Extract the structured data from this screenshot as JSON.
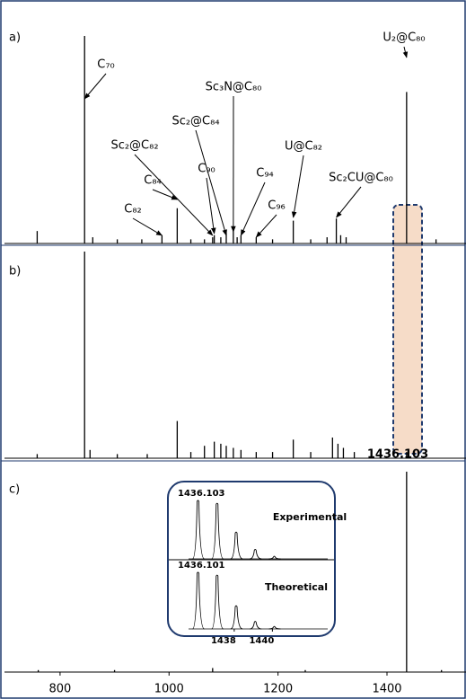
{
  "chart_data": [
    {
      "type": "spectrum",
      "panel_label": "a)",
      "xlim": [
        698,
        1545
      ],
      "ylim": [
        0,
        100
      ],
      "color": "#000000",
      "x": [
        758,
        845,
        860,
        905,
        950,
        987,
        1015,
        1040,
        1065,
        1080,
        1083,
        1095,
        1105,
        1118,
        1125,
        1132,
        1160,
        1190,
        1228,
        1260,
        1290,
        1307,
        1315,
        1325,
        1436,
        1490
      ],
      "values": [
        6,
        100,
        3,
        2,
        2,
        4,
        17,
        2,
        2,
        3,
        4,
        3,
        5,
        8,
        3,
        4,
        3,
        2,
        11,
        2,
        3,
        12,
        4,
        3,
        73,
        2
      ],
      "annotations": [
        {
          "text": "C₇₀",
          "x": 845
        },
        {
          "text": "C₈₂",
          "x": 987
        },
        {
          "text": "C₈₄",
          "x": 1015
        },
        {
          "text": "Sc₂@C₈₂",
          "x": 1080
        },
        {
          "text": "C₉₀",
          "x": 1083
        },
        {
          "text": "Sc₂@C₈₄",
          "x": 1105
        },
        {
          "text": "Sc₃N@C₈₀",
          "x": 1118
        },
        {
          "text": "C₉₄",
          "x": 1132
        },
        {
          "text": "C₉₆",
          "x": 1160
        },
        {
          "text": "U@C₈₂",
          "x": 1228
        },
        {
          "text": "Sc₂CU@C₈₀",
          "x": 1307
        },
        {
          "text": "U₂@C₈₀",
          "x": 1436
        }
      ]
    },
    {
      "type": "spectrum",
      "panel_label": "b)",
      "xlim": [
        698,
        1545
      ],
      "ylim": [
        0,
        100
      ],
      "color": "#000000",
      "x": [
        758,
        845,
        855,
        905,
        960,
        1015,
        1040,
        1065,
        1083,
        1095,
        1105,
        1118,
        1132,
        1160,
        1190,
        1228,
        1260,
        1300,
        1310,
        1320,
        1340,
        1436
      ],
      "values": [
        2,
        100,
        4,
        2,
        2,
        18,
        3,
        6,
        8,
        7,
        6,
        5,
        4,
        3,
        3,
        9,
        3,
        10,
        7,
        5,
        3,
        3
      ]
    },
    {
      "type": "spectrum",
      "panel_label": "c)",
      "xlim": [
        698,
        1545
      ],
      "ylim": [
        0,
        100
      ],
      "color": "#000000",
      "xticks": [
        800,
        1000,
        1200,
        1400
      ],
      "peak_label": "1436.103",
      "x": [
        760,
        900,
        1080,
        1250,
        1436,
        1500
      ],
      "values": [
        1,
        1,
        2,
        1,
        100,
        1
      ],
      "inset": {
        "type": "spectrum",
        "xlim": [
          1434.9,
          1442.9
        ],
        "ylim": [
          0,
          100
        ],
        "xticks": [
          1438,
          1440
        ],
        "series": [
          {
            "name": "Experimental",
            "peak_label": "1436.103",
            "x": [
              1436.1,
              1437.1,
              1438.1,
              1439.1,
              1440.1
            ],
            "values": [
              100,
              95,
              45,
              15,
              3
            ]
          },
          {
            "name": "Theoretical",
            "peak_label": "1436.101",
            "x": [
              1436.1,
              1437.1,
              1438.1,
              1439.1,
              1440.1
            ],
            "values": [
              100,
              95,
              40,
              12,
              3
            ]
          }
        ]
      }
    }
  ]
}
